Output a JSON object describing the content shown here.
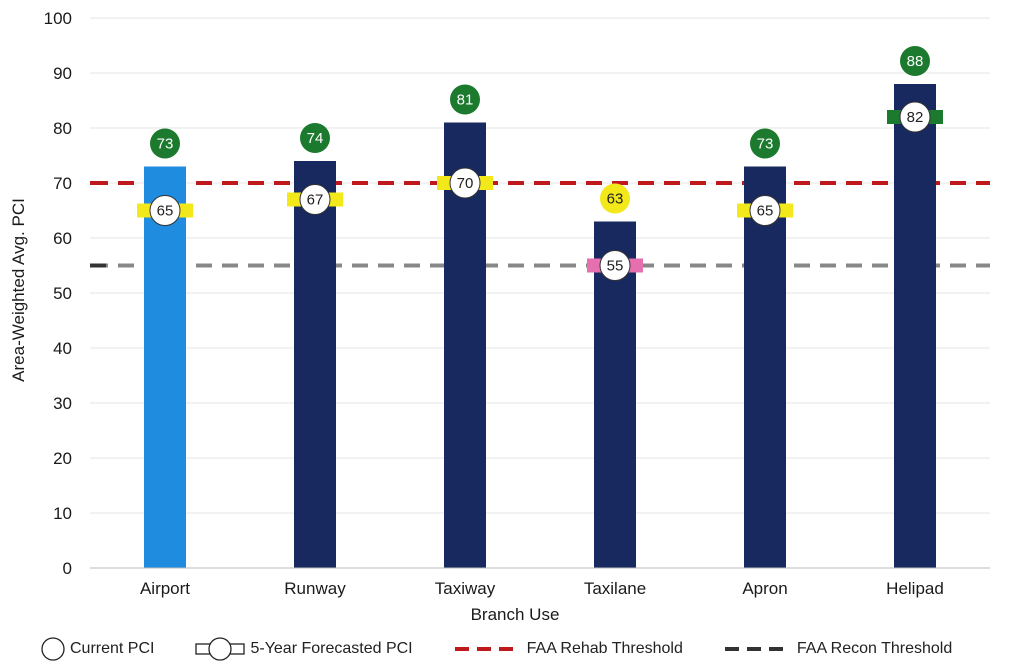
{
  "chart_data": {
    "type": "bar",
    "xlabel": "Branch Use",
    "ylabel": "Area-Weighted Avg. PCI",
    "ylim": [
      0,
      100
    ],
    "yticks": [
      "0",
      "10",
      "20",
      "30",
      "40",
      "50",
      "60",
      "70",
      "80",
      "90",
      "100"
    ],
    "grid": true,
    "categories": [
      "Airport",
      "Runway",
      "Taxiway",
      "Taxilane",
      "Apron",
      "Helipad"
    ],
    "series": [
      {
        "name": "Current PCI",
        "values": [
          73,
          74,
          81,
          63,
          73,
          88
        ],
        "bar_colors": [
          "#1f8ce0",
          "#17295e",
          "#17295e",
          "#17295e",
          "#17295e",
          "#17295e"
        ],
        "label_colors": [
          "#1b7a2e",
          "#1b7a2e",
          "#1b7a2e",
          "#f2e81a",
          "#1b7a2e",
          "#1b7a2e"
        ]
      },
      {
        "name": "5-Year Forecasted PCI",
        "values": [
          65,
          67,
          70,
          55,
          65,
          82
        ],
        "marker_colors": [
          "#f2e81a",
          "#f2e81a",
          "#f2e81a",
          "#e66fb0",
          "#f2e81a",
          "#1b7a2e"
        ]
      }
    ],
    "thresholds": [
      {
        "name": "FAA Rehab Threshold",
        "value": 70,
        "color": "#c0191c"
      },
      {
        "name": "FAA Recon Threshold",
        "value": 55,
        "color": "#888888",
        "legend_color": "#333333"
      }
    ],
    "legend_position": "bottom",
    "legend": [
      "Current PCI",
      "5-Year Forecasted PCI",
      "FAA Rehab Threshold",
      "FAA Recon Threshold"
    ]
  }
}
